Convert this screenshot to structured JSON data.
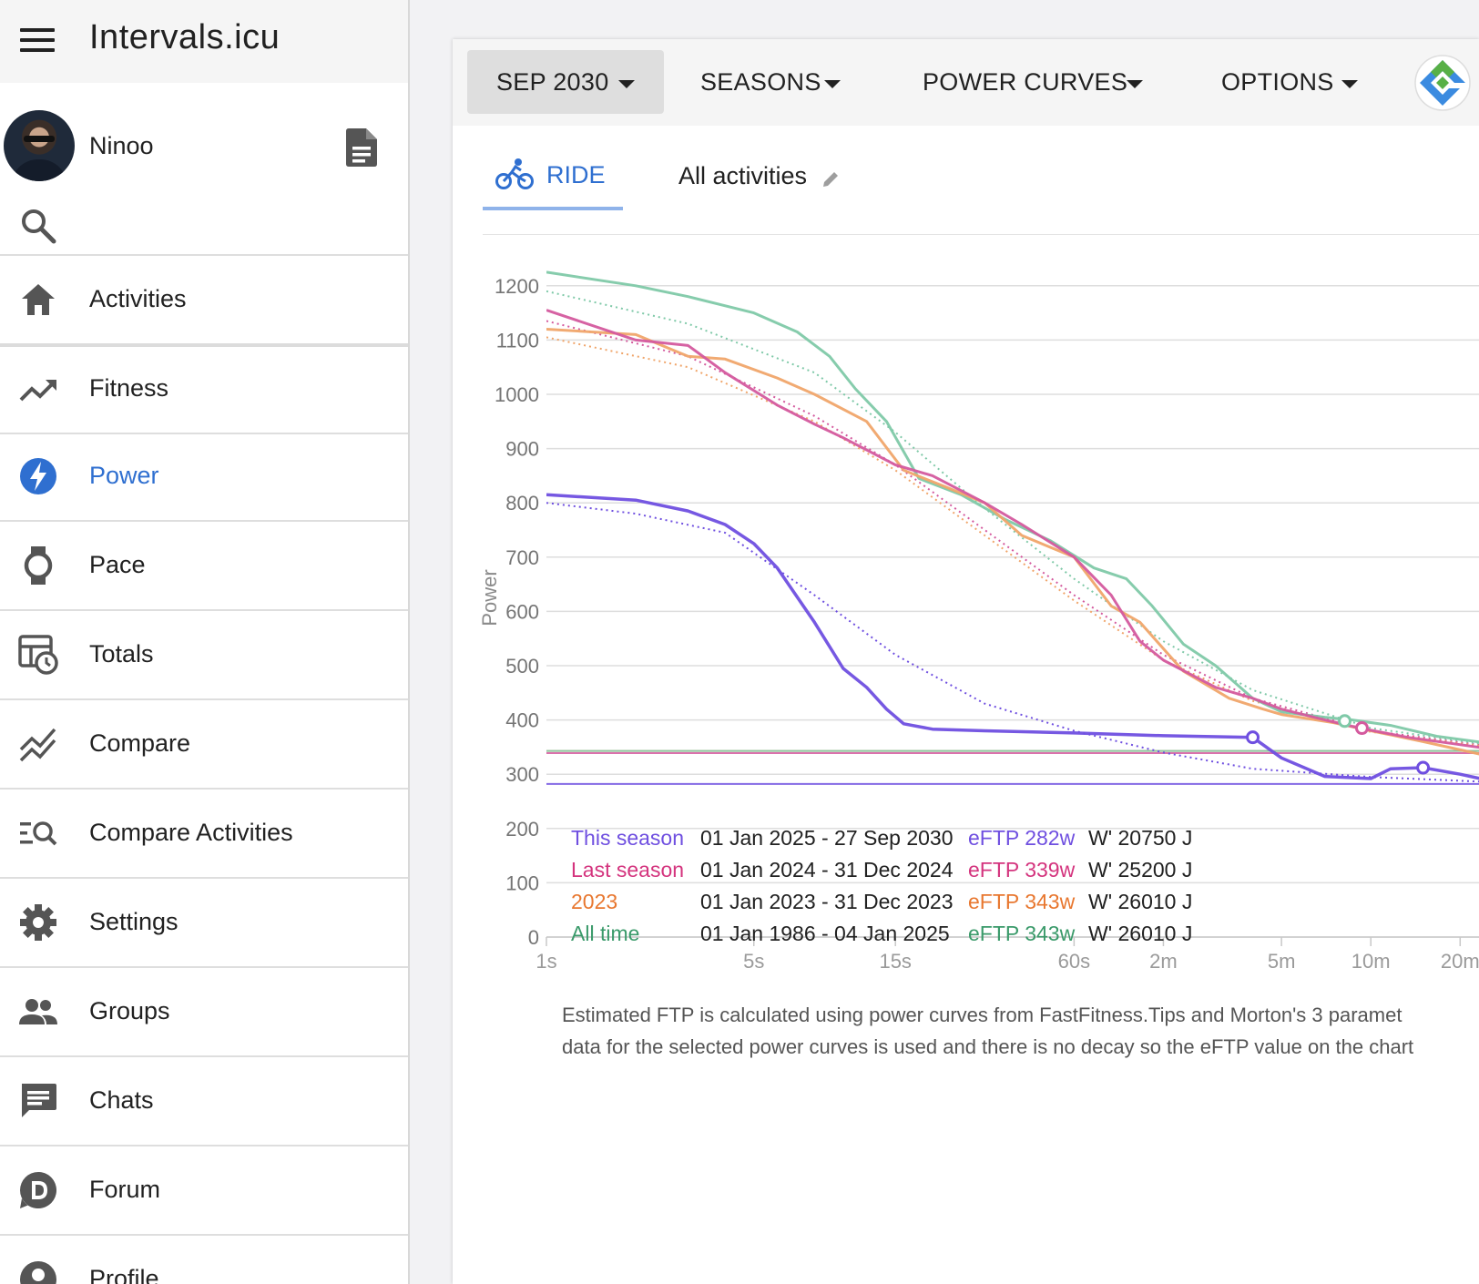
{
  "app": {
    "title": "Intervals.icu"
  },
  "user": {
    "name": "Ninoo"
  },
  "nav": [
    {
      "id": "activities",
      "label": "Activities",
      "icon": "home-icon"
    },
    {
      "id": "fitness",
      "label": "Fitness",
      "icon": "trending-up-icon"
    },
    {
      "id": "power",
      "label": "Power",
      "icon": "power-bolt-icon",
      "active": true
    },
    {
      "id": "pace",
      "label": "Pace",
      "icon": "watch-icon"
    },
    {
      "id": "totals",
      "label": "Totals",
      "icon": "table-clock-icon"
    },
    {
      "id": "compare",
      "label": "Compare",
      "icon": "compare-lines-icon"
    },
    {
      "id": "compare-activities",
      "label": "Compare Activities",
      "icon": "list-search-icon"
    },
    {
      "id": "settings",
      "label": "Settings",
      "icon": "gear-icon"
    },
    {
      "id": "groups",
      "label": "Groups",
      "icon": "people-icon"
    },
    {
      "id": "chats",
      "label": "Chats",
      "icon": "chat-icon"
    },
    {
      "id": "forum",
      "label": "Forum",
      "icon": "discourse-icon"
    },
    {
      "id": "profile",
      "label": "Profile",
      "icon": "profile-icon"
    }
  ],
  "toolbar": {
    "month_label": "SEP 2030",
    "seasons_label": "SEASONS",
    "power_curves_label": "POWER CURVES",
    "options_label": "OPTIONS"
  },
  "tabs": {
    "ride_label": "RIDE",
    "filter_label": "All activities"
  },
  "colors": {
    "this_season": "#6f4fe0",
    "last_season": "#d45a9e",
    "y2023": "#f0a56a",
    "all_time": "#7fc9a8",
    "accent": "#2f6fd0"
  },
  "chart_data": {
    "type": "line",
    "ylabel": "Power",
    "ylim": [
      0,
      1250
    ],
    "yticks": [
      0,
      100,
      200,
      300,
      400,
      500,
      600,
      700,
      800,
      900,
      1000,
      1100,
      1200
    ],
    "xscale": "log",
    "xtick_labels": [
      "1s",
      "5s",
      "15s",
      "60s",
      "2m",
      "5m",
      "10m",
      "20m"
    ],
    "xtick_seconds": [
      1,
      5,
      15,
      60,
      120,
      300,
      600,
      1200
    ],
    "series": [
      {
        "name": "This season",
        "color": "#6f4fe0",
        "eftp_line": 282,
        "points": [
          [
            1,
            815
          ],
          [
            2,
            805
          ],
          [
            3,
            785
          ],
          [
            4,
            760
          ],
          [
            5,
            725
          ],
          [
            6,
            680
          ],
          [
            8,
            580
          ],
          [
            10,
            495
          ],
          [
            12,
            460
          ],
          [
            14,
            420
          ],
          [
            16,
            393
          ],
          [
            20,
            383
          ],
          [
            30,
            380
          ],
          [
            60,
            376
          ],
          [
            120,
            371
          ],
          [
            240,
            368
          ],
          [
            300,
            330
          ],
          [
            420,
            296
          ],
          [
            600,
            292
          ],
          [
            700,
            310
          ],
          [
            900,
            312
          ],
          [
            1200,
            300
          ],
          [
            1600,
            285
          ]
        ]
      },
      {
        "name": "Last season",
        "color": "#d45a9e",
        "eftp_line": 339,
        "points": [
          [
            1,
            1155
          ],
          [
            2,
            1100
          ],
          [
            3,
            1090
          ],
          [
            4,
            1040
          ],
          [
            6,
            980
          ],
          [
            8,
            945
          ],
          [
            10,
            920
          ],
          [
            15,
            870
          ],
          [
            20,
            850
          ],
          [
            30,
            800
          ],
          [
            40,
            760
          ],
          [
            60,
            700
          ],
          [
            80,
            630
          ],
          [
            100,
            545
          ],
          [
            120,
            510
          ],
          [
            180,
            460
          ],
          [
            240,
            440
          ],
          [
            300,
            420
          ],
          [
            420,
            400
          ],
          [
            550,
            385
          ],
          [
            800,
            368
          ],
          [
            1600,
            345
          ]
        ]
      },
      {
        "name": "2023",
        "color": "#f0a56a",
        "eftp_line": 343,
        "points": [
          [
            1,
            1120
          ],
          [
            2,
            1110
          ],
          [
            3,
            1070
          ],
          [
            4,
            1065
          ],
          [
            6,
            1030
          ],
          [
            8,
            1000
          ],
          [
            12,
            950
          ],
          [
            16,
            860
          ],
          [
            22,
            830
          ],
          [
            30,
            800
          ],
          [
            40,
            740
          ],
          [
            60,
            700
          ],
          [
            80,
            610
          ],
          [
            100,
            580
          ],
          [
            140,
            490
          ],
          [
            200,
            440
          ],
          [
            260,
            420
          ],
          [
            300,
            410
          ],
          [
            450,
            395
          ],
          [
            600,
            380
          ],
          [
            900,
            360
          ],
          [
            1600,
            330
          ]
        ]
      },
      {
        "name": "All time",
        "color": "#7fc9a8",
        "eftp_line": 343,
        "points": [
          [
            1,
            1225
          ],
          [
            2,
            1200
          ],
          [
            3,
            1180
          ],
          [
            5,
            1150
          ],
          [
            7,
            1115
          ],
          [
            9,
            1070
          ],
          [
            11,
            1010
          ],
          [
            14,
            950
          ],
          [
            18,
            845
          ],
          [
            25,
            815
          ],
          [
            35,
            770
          ],
          [
            50,
            730
          ],
          [
            70,
            680
          ],
          [
            90,
            660
          ],
          [
            110,
            610
          ],
          [
            140,
            540
          ],
          [
            180,
            500
          ],
          [
            240,
            440
          ],
          [
            300,
            415
          ],
          [
            420,
            405
          ],
          [
            520,
            400
          ],
          [
            700,
            390
          ],
          [
            1000,
            370
          ],
          [
            1600,
            355
          ]
        ]
      }
    ],
    "dotted_series": [
      {
        "color": "#6f4fe0",
        "points": [
          [
            1,
            800
          ],
          [
            2,
            780
          ],
          [
            4,
            745
          ],
          [
            8,
            630
          ],
          [
            15,
            520
          ],
          [
            30,
            430
          ],
          [
            60,
            380
          ],
          [
            120,
            340
          ],
          [
            240,
            310
          ],
          [
            600,
            295
          ],
          [
            1600,
            285
          ]
        ]
      },
      {
        "color": "#d45a9e",
        "points": [
          [
            1,
            1135
          ],
          [
            3,
            1070
          ],
          [
            8,
            960
          ],
          [
            15,
            870
          ],
          [
            30,
            750
          ],
          [
            60,
            630
          ],
          [
            120,
            520
          ],
          [
            240,
            440
          ],
          [
            600,
            380
          ],
          [
            1600,
            350
          ]
        ]
      },
      {
        "color": "#f0a56a",
        "points": [
          [
            1,
            1105
          ],
          [
            3,
            1050
          ],
          [
            8,
            950
          ],
          [
            15,
            860
          ],
          [
            30,
            740
          ],
          [
            60,
            620
          ],
          [
            120,
            510
          ],
          [
            240,
            435
          ],
          [
            600,
            378
          ],
          [
            1600,
            348
          ]
        ]
      },
      {
        "color": "#7fc9a8",
        "points": [
          [
            1,
            1190
          ],
          [
            3,
            1130
          ],
          [
            8,
            1040
          ],
          [
            15,
            930
          ],
          [
            30,
            790
          ],
          [
            60,
            660
          ],
          [
            120,
            545
          ],
          [
            240,
            455
          ],
          [
            600,
            385
          ],
          [
            1600,
            352
          ]
        ]
      }
    ],
    "markers": [
      {
        "color": "#6f4fe0",
        "x": 240,
        "y": 368
      },
      {
        "color": "#6f4fe0",
        "x": 900,
        "y": 312
      },
      {
        "color": "#7fc9a8",
        "x": 490,
        "y": 398
      },
      {
        "color": "#d45a9e",
        "x": 560,
        "y": 385
      }
    ],
    "legend": [
      {
        "name": "This season",
        "dates": "01 Jan 2025 - 27 Sep 2030",
        "eftp": "eFTP 282w",
        "wprime": "W' 20750 J",
        "color": "#6f4fe0"
      },
      {
        "name": "Last season",
        "dates": "01 Jan 2024 - 31 Dec 2024",
        "eftp": "eFTP 339w",
        "wprime": "W' 25200 J",
        "color": "#d4347e"
      },
      {
        "name": "2023",
        "dates": "01 Jan 2023 - 31 Dec 2023",
        "eftp": "eFTP 343w",
        "wprime": "W' 26010 J",
        "color": "#e8772f"
      },
      {
        "name": "All time",
        "dates": "01 Jan 1986 - 04 Jan 2025",
        "eftp": "eFTP 343w",
        "wprime": "W' 26010 J",
        "color": "#3a9a6a"
      }
    ]
  },
  "note": [
    "Estimated FTP is calculated using power curves from FastFitness.Tips and Morton's 3 paramet",
    "data for the selected power curves is used and there is no decay so the eFTP value on the chart"
  ]
}
